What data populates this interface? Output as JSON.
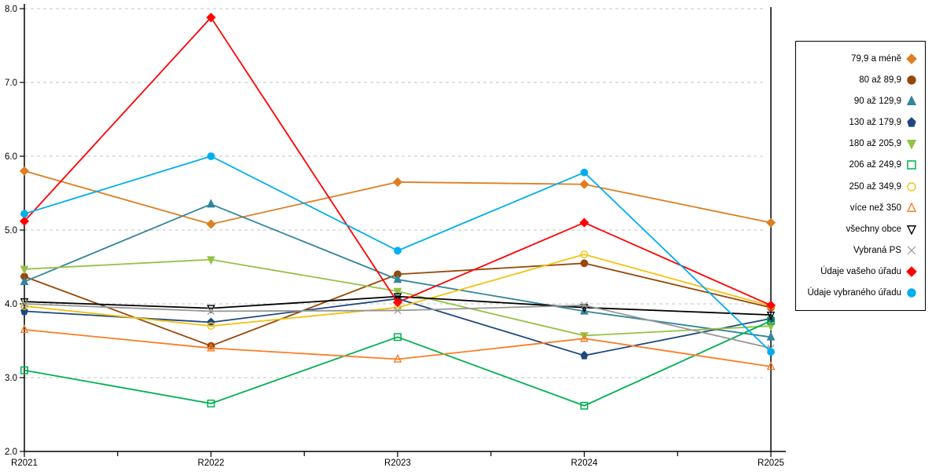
{
  "chart_data": {
    "type": "line",
    "title": "",
    "xlabel": "",
    "ylabel": "",
    "categories": [
      "R2021",
      "R2022",
      "R2023",
      "R2024",
      "R2025"
    ],
    "y_axis": {
      "min": 2.0,
      "max": 8.0,
      "tick_step": 1.0,
      "tick_labels": [
        "2.0",
        "3.0",
        "4.0",
        "5.0",
        "6.0",
        "7.0",
        "8.0"
      ]
    },
    "grid": "horizontal dashed gridlines at each 1.0",
    "legend_position": "right",
    "series": [
      {
        "name": "79,9 a méně",
        "color": "#DE7E21",
        "marker": "diamond",
        "filled": true,
        "values": [
          5.8,
          5.08,
          5.65,
          5.62,
          5.1
        ]
      },
      {
        "name": "80 až 89,9",
        "color": "#974706",
        "marker": "circle",
        "filled": true,
        "values": [
          4.37,
          3.43,
          4.4,
          4.55,
          3.95
        ]
      },
      {
        "name": "90 až 129,9",
        "color": "#31859C",
        "marker": "triangle-up",
        "filled": true,
        "values": [
          4.3,
          5.35,
          4.33,
          3.9,
          3.55
        ]
      },
      {
        "name": "130 až 179,9",
        "color": "#1F497D",
        "marker": "pentagon",
        "filled": true,
        "values": [
          3.9,
          3.75,
          4.07,
          3.3,
          3.8
        ]
      },
      {
        "name": "180 až 205,9",
        "color": "#94C247",
        "marker": "triangle-down",
        "filled": true,
        "values": [
          4.47,
          4.6,
          4.17,
          3.57,
          3.7
        ]
      },
      {
        "name": "206 až 249,9",
        "color": "#00B050",
        "marker": "square",
        "filled": false,
        "values": [
          3.1,
          2.65,
          3.55,
          2.62,
          3.77
        ]
      },
      {
        "name": "250 až 349,9",
        "color": "#F2C211",
        "marker": "circle",
        "filled": false,
        "values": [
          3.97,
          3.7,
          3.95,
          4.67,
          3.97
        ]
      },
      {
        "name": "více než 350",
        "color": "#FB7D25",
        "marker": "triangle-up",
        "filled": false,
        "values": [
          3.65,
          3.4,
          3.25,
          3.53,
          3.15
        ]
      },
      {
        "name": "všechny obce",
        "color": "#000000",
        "marker": "triangle-down",
        "filled": false,
        "values": [
          4.03,
          3.94,
          4.1,
          3.95,
          3.85
        ]
      },
      {
        "name": "Vybraná PS",
        "color": "#969696",
        "marker": "x",
        "filled": false,
        "values": [
          4.0,
          3.9,
          3.91,
          3.98,
          3.4
        ]
      },
      {
        "name": "Údaje vašeho úřadu",
        "color": "#FF0000",
        "marker": "diamond",
        "filled": true,
        "values": [
          5.12,
          7.88,
          4.02,
          5.1,
          3.98
        ]
      },
      {
        "name": "Údaje vybraného úřadu",
        "color": "#00AEEF",
        "marker": "circle",
        "filled": true,
        "values": [
          5.22,
          6.0,
          4.72,
          5.78,
          3.35
        ]
      }
    ]
  },
  "colors": {
    "background": "#FFFFFF",
    "gridline": "#C3C3C3",
    "axis": "#000000",
    "legend_border": "#000000",
    "text": "#000000"
  }
}
